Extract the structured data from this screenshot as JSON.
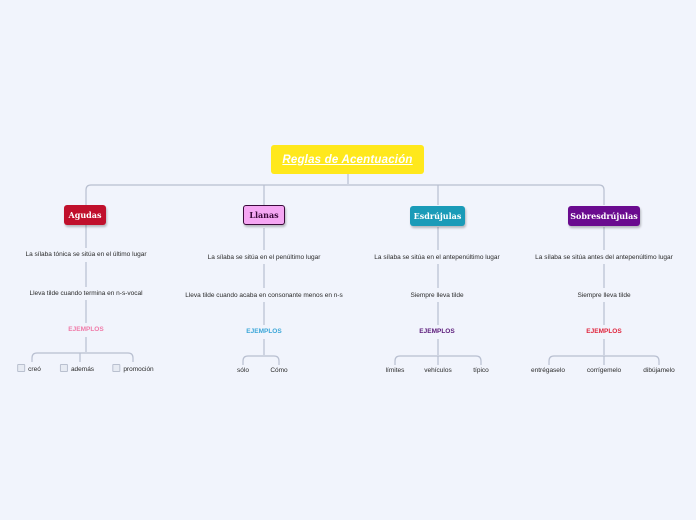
{
  "root": {
    "title": "Reglas de Acentuación"
  },
  "colors": {
    "background": "#f1f4fc",
    "root": "#ffe81c",
    "line": "#b8bfd0",
    "agudas": "#c0102c",
    "llanas": "#f5a6f3",
    "esdrujulas": "#1a9bb8",
    "sobresdrujulas": "#6a0b8f"
  },
  "branches": {
    "agudas": {
      "label": "Agudas",
      "rule": "La sílaba tónica se sitúa en el último lugar",
      "detail": "Lleva tilde cuando termina en n-s-vocal",
      "examples_label": "EJEMPLOS",
      "examples": [
        "creó",
        "además",
        "promoción"
      ]
    },
    "llanas": {
      "label": "Llanas",
      "rule": "La sílaba se sitúa en el penúltimo lugar",
      "detail": "Lleva tilde cuando acaba en consonante menos en n-s",
      "examples_label": "EJEMPLOS",
      "examples": [
        "sólo",
        "Cómo"
      ]
    },
    "esdrujulas": {
      "label": "Esdrújulas",
      "rule": "La sílaba se sitúa en el antepenúltimo  lugar",
      "detail": "Siempre lleva tilde",
      "examples_label": "EJEMPLOS",
      "examples": [
        "límites",
        "vehículos",
        "típico"
      ]
    },
    "sobresdrujulas": {
      "label": "Sobresdrújulas",
      "rule": "La sílaba se sitúa antes del antepenúltimo lugar",
      "detail": "Siempre lleva tilde",
      "examples_label": "EJEMPLOS",
      "examples": [
        "entrégaselo",
        "corrígemelo",
        "dibújamelo"
      ]
    }
  }
}
